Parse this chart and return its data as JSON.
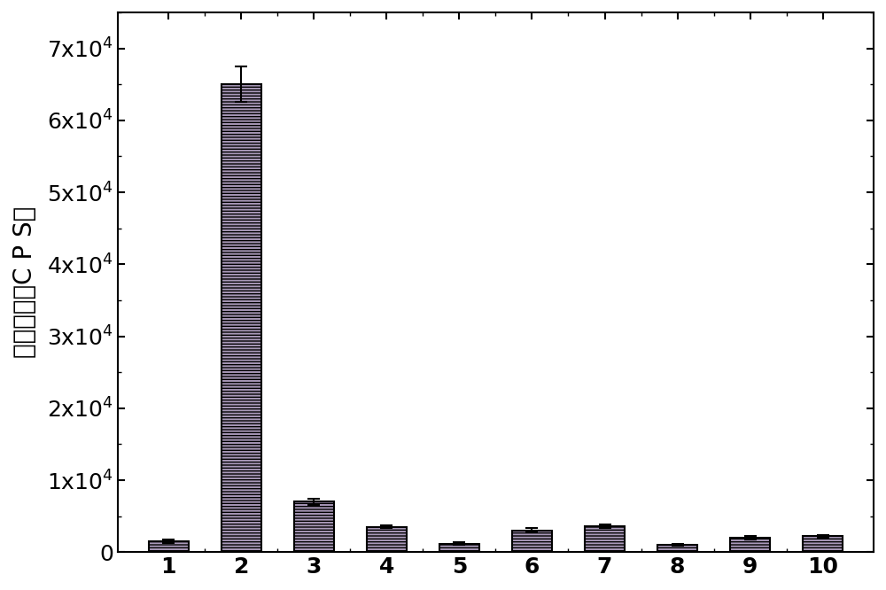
{
  "categories": [
    "1",
    "2",
    "3",
    "4",
    "5",
    "6",
    "7",
    "8",
    "9",
    "10"
  ],
  "values": [
    1500,
    65000,
    7000,
    3500,
    1200,
    3000,
    3600,
    1000,
    2000,
    2200
  ],
  "errors": [
    200,
    2500,
    400,
    200,
    200,
    300,
    300,
    150,
    200,
    200
  ],
  "bar_facecolor": "#a898b8",
  "bar_edgecolor": "#000000",
  "error_color": "#000000",
  "ylabel": "荧光强度（C P S）",
  "ylim": [
    0,
    75000
  ],
  "yticks": [
    0,
    10000,
    20000,
    30000,
    40000,
    50000,
    60000,
    70000
  ],
  "ytick_labels": [
    "0",
    "1x10$^4$",
    "2x10$^4$",
    "3x10$^4$",
    "4x10$^4$",
    "5x10$^4$",
    "6x10$^4$",
    "7x10$^4$"
  ],
  "background_color": "#ffffff",
  "bar_width": 0.55,
  "ylabel_fontsize": 20,
  "tick_fontsize": 18,
  "linewidth": 1.5
}
